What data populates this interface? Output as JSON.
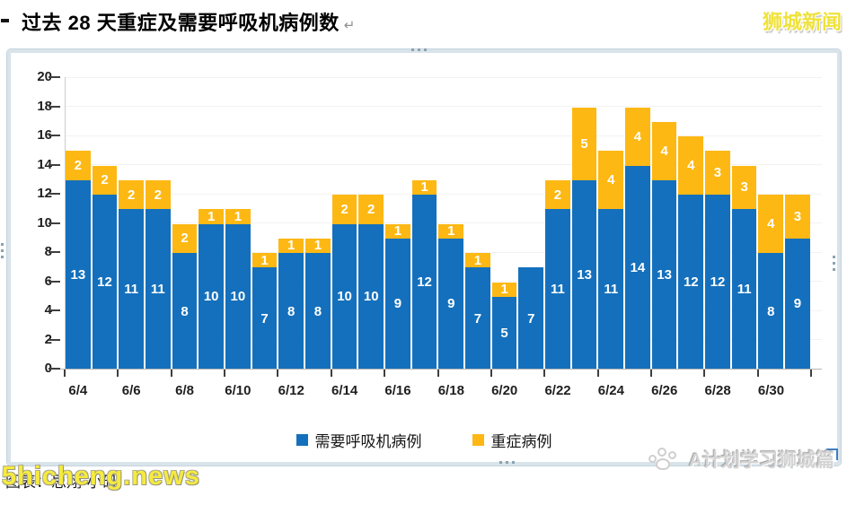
{
  "title": {
    "text": "过去 28 天重症及需要呼吸机病例数",
    "return_mark": "↵"
  },
  "watermarks": {
    "top_right": "狮城新闻",
    "bottom_left": "5hicheng.news",
    "bottom_right": "A计划学习狮城篇"
  },
  "caption": {
    "text": "图表：思翔·小矶"
  },
  "chart_data": {
    "type": "bar",
    "stacked": true,
    "title": "过去 28 天重症及需要呼吸机病例数",
    "categories": [
      "6/4",
      "6/5",
      "6/6",
      "6/7",
      "6/8",
      "6/9",
      "6/10",
      "6/11",
      "6/12",
      "6/13",
      "6/14",
      "6/15",
      "6/16",
      "6/17",
      "6/18",
      "6/19",
      "6/20",
      "6/21",
      "6/22",
      "6/23",
      "6/24",
      "6/25",
      "6/26",
      "6/27",
      "6/28",
      "6/29",
      "6/30",
      "7/1"
    ],
    "x_tick_labels": [
      "6/4",
      "6/6",
      "6/8",
      "6/10",
      "6/12",
      "6/14",
      "6/16",
      "6/18",
      "6/20",
      "6/22",
      "6/24",
      "6/26",
      "6/28",
      "6/30"
    ],
    "series": [
      {
        "name": "需要呼吸机病例",
        "color": "#1470bc",
        "values": [
          13,
          12,
          11,
          11,
          8,
          10,
          10,
          7,
          8,
          8,
          10,
          10,
          9,
          12,
          9,
          7,
          5,
          7,
          11,
          13,
          11,
          14,
          13,
          12,
          12,
          11,
          8,
          9
        ]
      },
      {
        "name": "重症病例",
        "color": "#fdb814",
        "values": [
          2,
          2,
          2,
          2,
          2,
          1,
          1,
          1,
          1,
          1,
          2,
          2,
          1,
          1,
          1,
          1,
          1,
          0,
          2,
          5,
          4,
          4,
          4,
          4,
          3,
          3,
          4,
          3
        ]
      }
    ],
    "ylim": [
      0,
      20
    ],
    "y_ticks": [
      0,
      2,
      4,
      6,
      8,
      10,
      12,
      14,
      16,
      18,
      20
    ],
    "grid": true,
    "legend_position": "bottom",
    "value_labels": "inside-center, white"
  }
}
